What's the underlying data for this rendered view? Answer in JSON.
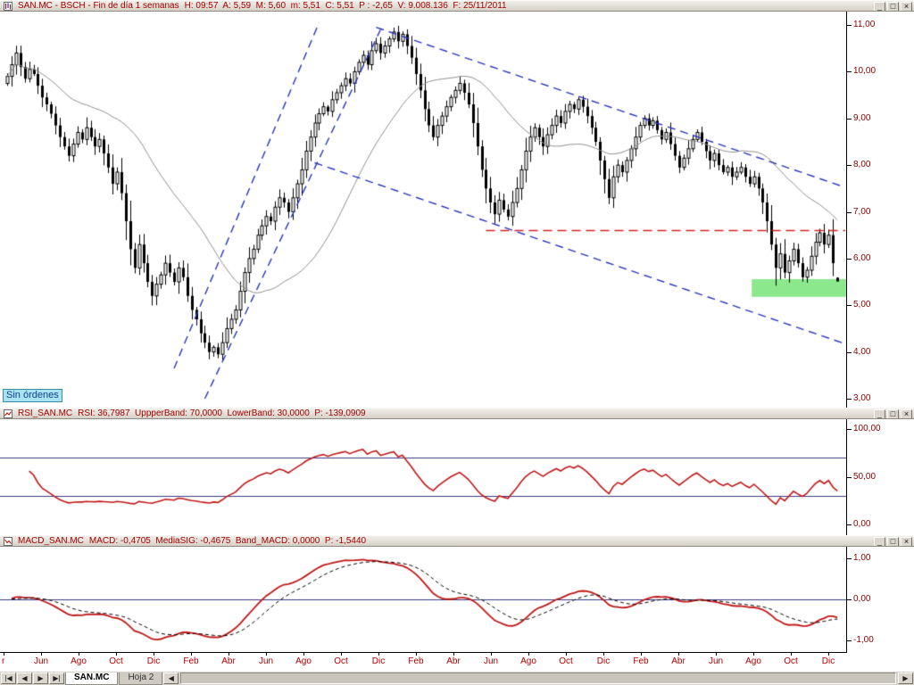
{
  "colors": {
    "accent_red": "#a40000",
    "chart_red": "#c01818",
    "blue_dash": "#2a35bb",
    "green_zone": "#8ce88c",
    "label_red": "#8b0000"
  },
  "window_buttons": [
    "_",
    "□",
    "×"
  ],
  "price_panel": {
    "title": "SAN.MC - BSCH - Fin de día 1 semanas",
    "stats": "H: 09:57  A: 5,59  M: 5,60  m: 5,51  C: 5,51  P : -2,65  V: 9.008.136  F: 25/11/2011",
    "no_orders": "Sin órdenes"
  },
  "rsi_panel": {
    "name": "RSI_SAN.MC",
    "stats": "RSI: 36,7987  UppperBand: 70,0000  LowerBand: 30,0000  P: -139,0909"
  },
  "macd_panel": {
    "name": "MACD_SAN.MC",
    "stats": "MACD: -0,4705  MediaSIG: -0,4675  Band_MACD: 0,0000  P: -1,5440"
  },
  "sheet_bar": {
    "nav": [
      "|◀",
      "◀",
      "▶",
      "▶|"
    ],
    "tabs": [
      {
        "label": "SAN.MC",
        "active": true
      },
      {
        "label": "Hoja 2",
        "active": false
      }
    ],
    "scroll_left": "◀",
    "scroll_right": "▶"
  },
  "chart_data": {
    "type": "candlestick",
    "title": "SAN.MC weekly (Fin de día, 1 semanas)",
    "x_labels": [
      "r",
      "Jun",
      "Ago",
      "Oct",
      "Dic",
      "Feb",
      "Abr",
      "Jun",
      "Ago",
      "Oct",
      "Dic",
      "Feb",
      "Abr",
      "Jun",
      "Ago",
      "Oct",
      "Dic",
      "Feb",
      "Abr",
      "Jun",
      "Ago",
      "Oct",
      "Dic"
    ],
    "price": {
      "ylim": [
        3,
        11.3
      ],
      "y_ticks": {
        "labels": [
          "11,00",
          "10,00",
          "9,00",
          "8,00",
          "7,00",
          "6,00",
          "5,00",
          "4,00",
          "3,00"
        ],
        "values": [
          11,
          10,
          9,
          8,
          7,
          6,
          5,
          4,
          3
        ]
      },
      "closes": [
        9.9,
        10.15,
        10.4,
        10.1,
        9.85,
        10.05,
        9.95,
        9.7,
        9.45,
        9.3,
        9.1,
        8.85,
        8.6,
        8.4,
        8.2,
        8.45,
        8.7,
        8.55,
        8.8,
        8.6,
        8.4,
        8.55,
        8.25,
        7.95,
        7.6,
        7.85,
        7.4,
        6.8,
        6.2,
        5.8,
        6.3,
        5.9,
        5.5,
        5.2,
        5.45,
        5.65,
        5.9,
        5.7,
        5.5,
        5.8,
        5.6,
        5.2,
        4.9,
        4.7,
        4.4,
        4.2,
        4.0,
        4.1,
        3.95,
        4.2,
        4.5,
        4.7,
        4.9,
        5.3,
        5.7,
        6.0,
        6.2,
        6.5,
        6.7,
        6.9,
        6.8,
        7.1,
        7.3,
        7.2,
        7.0,
        7.3,
        7.6,
        7.9,
        8.3,
        8.6,
        8.9,
        9.1,
        9.25,
        9.15,
        9.4,
        9.55,
        9.7,
        9.85,
        9.75,
        10.0,
        10.2,
        10.35,
        10.15,
        10.45,
        10.6,
        10.4,
        10.55,
        10.7,
        10.85,
        10.65,
        10.8,
        10.55,
        10.3,
        9.95,
        9.6,
        9.2,
        8.85,
        8.6,
        8.85,
        9.05,
        9.25,
        9.45,
        9.6,
        9.75,
        9.55,
        9.3,
        8.9,
        8.4,
        7.9,
        7.5,
        7.2,
        6.95,
        7.25,
        7.05,
        6.9,
        7.2,
        7.5,
        7.9,
        8.3,
        8.6,
        8.8,
        8.6,
        8.4,
        8.65,
        8.85,
        9.05,
        8.9,
        9.15,
        9.3,
        9.2,
        9.4,
        9.25,
        9.05,
        8.8,
        8.5,
        8.1,
        7.7,
        7.3,
        7.75,
        8.0,
        7.85,
        8.1,
        8.35,
        8.6,
        8.85,
        9.0,
        8.85,
        8.95,
        8.75,
        8.55,
        8.7,
        8.45,
        8.2,
        7.95,
        8.15,
        8.35,
        8.55,
        8.7,
        8.5,
        8.3,
        8.1,
        8.25,
        8.0,
        7.85,
        7.95,
        7.75,
        7.85,
        7.95,
        7.75,
        7.6,
        7.75,
        7.5,
        7.2,
        6.8,
        6.3,
        5.8,
        6.1,
        5.7,
        5.95,
        6.2,
        5.9,
        5.6,
        5.75,
        6.05,
        6.35,
        6.55,
        6.3,
        6.5,
        5.9,
        5.51
      ],
      "last_candle": {
        "open": 5.59,
        "high": 5.6,
        "low": 5.51,
        "close": 5.51
      },
      "sma_period": 30,
      "trendlines": [
        {
          "from": [
            38,
            3.65
          ],
          "to": [
            71,
            11.05
          ]
        },
        {
          "from": [
            45,
            3.0
          ],
          "to": [
            85,
            10.9
          ]
        },
        {
          "from": [
            84,
            10.95
          ],
          "to": [
            190,
            7.55
          ]
        },
        {
          "from": [
            70,
            8.05
          ],
          "to": [
            190,
            4.2
          ]
        }
      ],
      "resistance": {
        "price": 6.6,
        "from_week": 109
      },
      "support_zone": {
        "from_week": 169.5,
        "to_week": 191,
        "price_low": 5.18,
        "price_high": 5.56
      }
    },
    "rsi": {
      "y_ticks": {
        "labels": [
          "100,00",
          "50,00",
          "0,00"
        ],
        "values": [
          100,
          50,
          0
        ]
      },
      "period": 14,
      "upper": 70,
      "lower": 30,
      "last": 36.7987,
      "ylim": [
        0,
        100
      ]
    },
    "macd": {
      "y_ticks": {
        "labels": [
          "1,00",
          "0,00",
          "-1,00"
        ],
        "values": [
          1,
          0,
          -1
        ]
      },
      "fast": 12,
      "slow": 26,
      "signal_period": 9,
      "last_macd": -0.4705,
      "last_signal": -0.4675,
      "ylim": [
        -1.25,
        1.25
      ]
    }
  }
}
